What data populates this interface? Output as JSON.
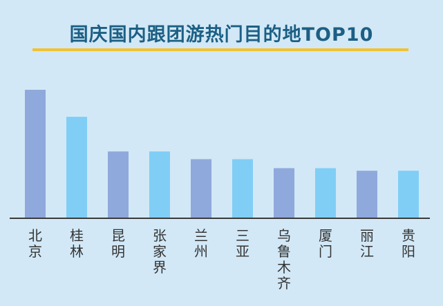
{
  "title": "国庆国内跟团游热门目的地TOP10",
  "colors": {
    "background": "#d2e8f6",
    "title": "#1c5f84",
    "underline": "#f2c230",
    "bar_dark": "#8fa9dc",
    "bar_light": "#80cef5",
    "axis": "#3a3a3a"
  },
  "chart_data": {
    "type": "bar",
    "title": "国庆国内跟团游热门目的地TOP10",
    "xlabel": "",
    "ylabel": "",
    "grid": false,
    "categories": [
      "北京",
      "桂林",
      "昆明",
      "张家界",
      "兰州",
      "三亚",
      "乌鲁木齐",
      "厦门",
      "丽江",
      "贵阳"
    ],
    "values": [
      100,
      79,
      52,
      52,
      46,
      46,
      39,
      39,
      37,
      37
    ],
    "ylim": [
      0,
      100
    ]
  }
}
